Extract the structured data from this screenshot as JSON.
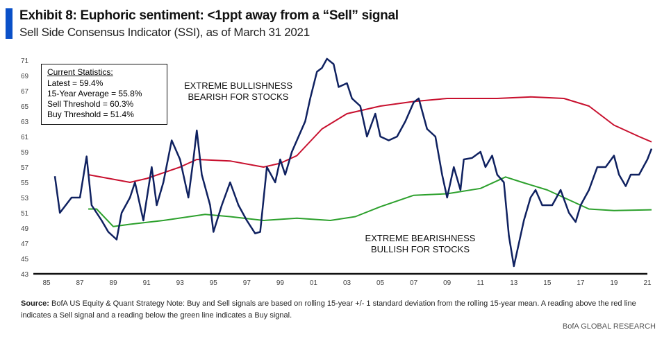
{
  "header": {
    "title": "Exhibit 8: Euphoric sentiment: <1ppt away  from a “Sell” signal",
    "subtitle": "Sell Side Consensus Indicator (SSI), as of March 31 2021"
  },
  "stats": {
    "heading": "Current Statistics:",
    "lines": [
      "Latest = 59.4%",
      "15-Year Average = 55.8%",
      "Sell Threshold = 60.3%",
      "Buy Threshold = 51.4%"
    ]
  },
  "annotations": {
    "top_1": "EXTREME BULLISHNESS",
    "top_2": "BEARISH FOR STOCKS",
    "bottom_1": "EXTREME BEARISHNESS",
    "bottom_2": "BULLISH FOR STOCKS"
  },
  "footer": {
    "source_label": "Source:",
    "source_text": " BofA US Equity & Quant Strategy Note: Buy and Sell signals are based on rolling 15-year +/- 1 standard deviation from the rolling 15-year mean. A reading above the red line indicates a Sell signal and a reading below the green line indicates  a Buy signal.",
    "brand": "BofA GLOBAL RESEARCH"
  },
  "chart_data": {
    "type": "line",
    "xlim": [
      1985,
      2021.9
    ],
    "ylim": [
      43,
      71
    ],
    "yticks": [
      43,
      45,
      47,
      49,
      51,
      53,
      55,
      57,
      59,
      61,
      63,
      65,
      67,
      69,
      71
    ],
    "xticks": [
      {
        "v": 1985,
        "l": "85"
      },
      {
        "v": 1987,
        "l": "87"
      },
      {
        "v": 1989,
        "l": "89"
      },
      {
        "v": 1991,
        "l": "91"
      },
      {
        "v": 1993,
        "l": "93"
      },
      {
        "v": 1995,
        "l": "95"
      },
      {
        "v": 1997,
        "l": "97"
      },
      {
        "v": 1999,
        "l": "99"
      },
      {
        "v": 2001,
        "l": "01"
      },
      {
        "v": 2003,
        "l": "03"
      },
      {
        "v": 2005,
        "l": "05"
      },
      {
        "v": 2007,
        "l": "07"
      },
      {
        "v": 2009,
        "l": "09"
      },
      {
        "v": 2011,
        "l": "11"
      },
      {
        "v": 2013,
        "l": "13"
      },
      {
        "v": 2015,
        "l": "15"
      },
      {
        "v": 2017,
        "l": "17"
      },
      {
        "v": 2019,
        "l": "19"
      },
      {
        "v": 2021,
        "l": "21"
      }
    ],
    "grid": false,
    "series": [
      {
        "color": "#0f2160",
        "x": [
          1985.5,
          1985.8,
          1986.5,
          1987.0,
          1987.4,
          1987.7,
          1988.3,
          1988.7,
          1989.2,
          1989.5,
          1990,
          1990.3,
          1990.8,
          1991.3,
          1991.6,
          1992,
          1992.5,
          1993,
          1993.5,
          1993.8,
          1994,
          1994.3,
          1994.8,
          1995,
          1995.5,
          1996,
          1996.5,
          1997,
          1997.5,
          1997.8,
          1998.2,
          1998.7,
          1999,
          1999.3,
          1999.7,
          2000,
          2000.5,
          2000.8,
          2001.2,
          2001.5,
          2001.8,
          2002.2,
          2002.5,
          2003,
          2003.3,
          2003.8,
          2004.2,
          2004.7,
          2005,
          2005.5,
          2006,
          2006.5,
          2007,
          2007.3,
          2007.8,
          2008.3,
          2008.7,
          2009,
          2009.4,
          2009.8,
          2010,
          2010.5,
          2011,
          2011.3,
          2011.7,
          2012,
          2012.4,
          2012.7,
          2013,
          2013.3,
          2013.6,
          2014,
          2014.3,
          2014.7,
          2015.3,
          2015.8,
          2016.3,
          2016.7,
          2017,
          2017.5,
          2018,
          2018.5,
          2019,
          2019.3,
          2019.7,
          2020,
          2020.5,
          2021,
          2021.25
        ],
        "y": [
          55.8,
          51,
          53,
          53,
          58.4,
          52,
          50,
          48.5,
          47.5,
          51,
          53,
          55,
          50,
          57,
          52,
          55,
          60.5,
          58,
          53,
          58,
          61.8,
          56,
          52,
          48.5,
          52,
          55,
          52,
          50,
          48.3,
          48.5,
          57,
          55,
          58,
          56,
          59,
          60.5,
          63,
          66,
          69.5,
          70,
          71.2,
          70.5,
          67.5,
          68,
          66,
          65,
          61,
          64,
          61,
          60.5,
          61,
          63,
          65.5,
          66,
          62,
          61,
          56,
          53,
          57,
          54,
          58,
          58.2,
          59,
          57,
          58.5,
          56,
          55,
          48,
          44,
          47,
          50,
          53,
          54,
          52,
          52,
          54,
          51,
          49.8,
          52,
          54,
          57,
          57,
          58.5,
          56,
          54.5,
          56,
          56,
          58,
          59.4
        ]
      },
      {
        "color": "#c8102e",
        "x": [
          1987.5,
          1990,
          1991,
          1993,
          1994,
          1996,
          1998,
          1999,
          2000,
          2001.5,
          2003,
          2005,
          2007,
          2009,
          2012,
          2014,
          2016,
          2017.5,
          2019,
          2020.5,
          2021.25
        ],
        "y": [
          56,
          55,
          55.5,
          57,
          58,
          57.8,
          57,
          57.5,
          58.5,
          62,
          64,
          65,
          65.6,
          66,
          66,
          66.2,
          66,
          65,
          62.5,
          61,
          60.3
        ]
      },
      {
        "color": "#2ca02c",
        "x": [
          1987.5,
          1988,
          1989,
          1990,
          1992,
          1994.5,
          1996,
          1998,
          2000,
          2002,
          2003.5,
          2005,
          2007,
          2009,
          2011,
          2012.5,
          2013.5,
          2015,
          2016.5,
          2017.5,
          2019,
          2021.25
        ],
        "y": [
          51.5,
          51.5,
          49.2,
          49.5,
          50,
          50.8,
          50.5,
          50,
          50.3,
          50,
          50.5,
          51.8,
          53.3,
          53.5,
          54.2,
          55.7,
          55,
          54,
          52.5,
          51.5,
          51.3,
          51.4
        ]
      }
    ]
  }
}
